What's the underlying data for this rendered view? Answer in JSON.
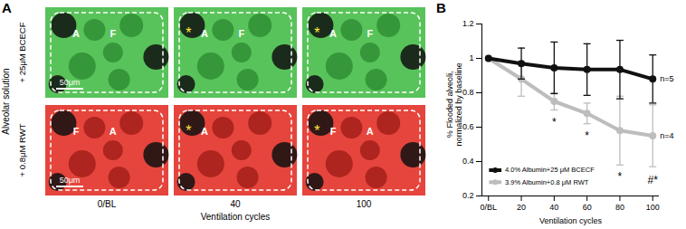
{
  "panel_a": {
    "letter": "A",
    "row_title": "Alveolar solution",
    "rows": [
      {
        "label": "+ 25μM BCECF",
        "color": "green",
        "scale_bar": "50μm",
        "tiles": [
          [
            "A",
            "F"
          ],
          [
            "*",
            "A",
            "F"
          ],
          [
            "*",
            "A",
            "F"
          ]
        ]
      },
      {
        "label": "+ 0.8μM RWT",
        "color": "red",
        "scale_bar": "50μm",
        "tiles": [
          [
            "F",
            "A"
          ],
          [
            "*",
            "A"
          ],
          [
            "F",
            "A",
            "*"
          ]
        ]
      }
    ],
    "columns": [
      "0/BL",
      "40",
      "100"
    ],
    "x_label": "Ventilation cycles"
  },
  "chart_data": {
    "type": "line",
    "panel": "B",
    "x_label": "Ventilation cycles",
    "y_label": "% Flooded alveoli,\nnormalized by baseline",
    "x": [
      0,
      20,
      40,
      60,
      80,
      100
    ],
    "xlim": [
      -4,
      104
    ],
    "xticks": [
      {
        "value": 0,
        "label": "0/BL"
      },
      20,
      40,
      60,
      80,
      100
    ],
    "ylim": [
      0.2,
      1.2
    ],
    "yticks": [
      0.2,
      0.4,
      0.6,
      0.8,
      1,
      1.2
    ],
    "legend": "bottom-left",
    "series": [
      {
        "name": "4.0% Albumin+25 μM BCECF",
        "color": "#111111",
        "marker": "circle",
        "n_label": "n=5",
        "values": [
          1.0,
          0.97,
          0.945,
          0.935,
          0.935,
          0.88
        ],
        "errors": [
          0,
          0.09,
          0.15,
          0.15,
          0.17,
          0.14
        ]
      },
      {
        "name": "3.9% Albumin+0.8 μM RWT",
        "color": "#bdbdbd",
        "marker": "circle",
        "n_label": "n=4",
        "values": [
          1.0,
          0.88,
          0.75,
          0.68,
          0.58,
          0.55
        ],
        "errors": [
          0,
          0.1,
          0.05,
          0.06,
          0.2,
          0.18
        ]
      }
    ],
    "annotations": [
      {
        "x": 40,
        "y": 0.63,
        "text": "*"
      },
      {
        "x": 60,
        "y": 0.55,
        "text": "*"
      },
      {
        "x": 80,
        "y": 0.31,
        "text": "*"
      },
      {
        "x": 100,
        "y": 0.29,
        "text": "#*"
      }
    ]
  }
}
